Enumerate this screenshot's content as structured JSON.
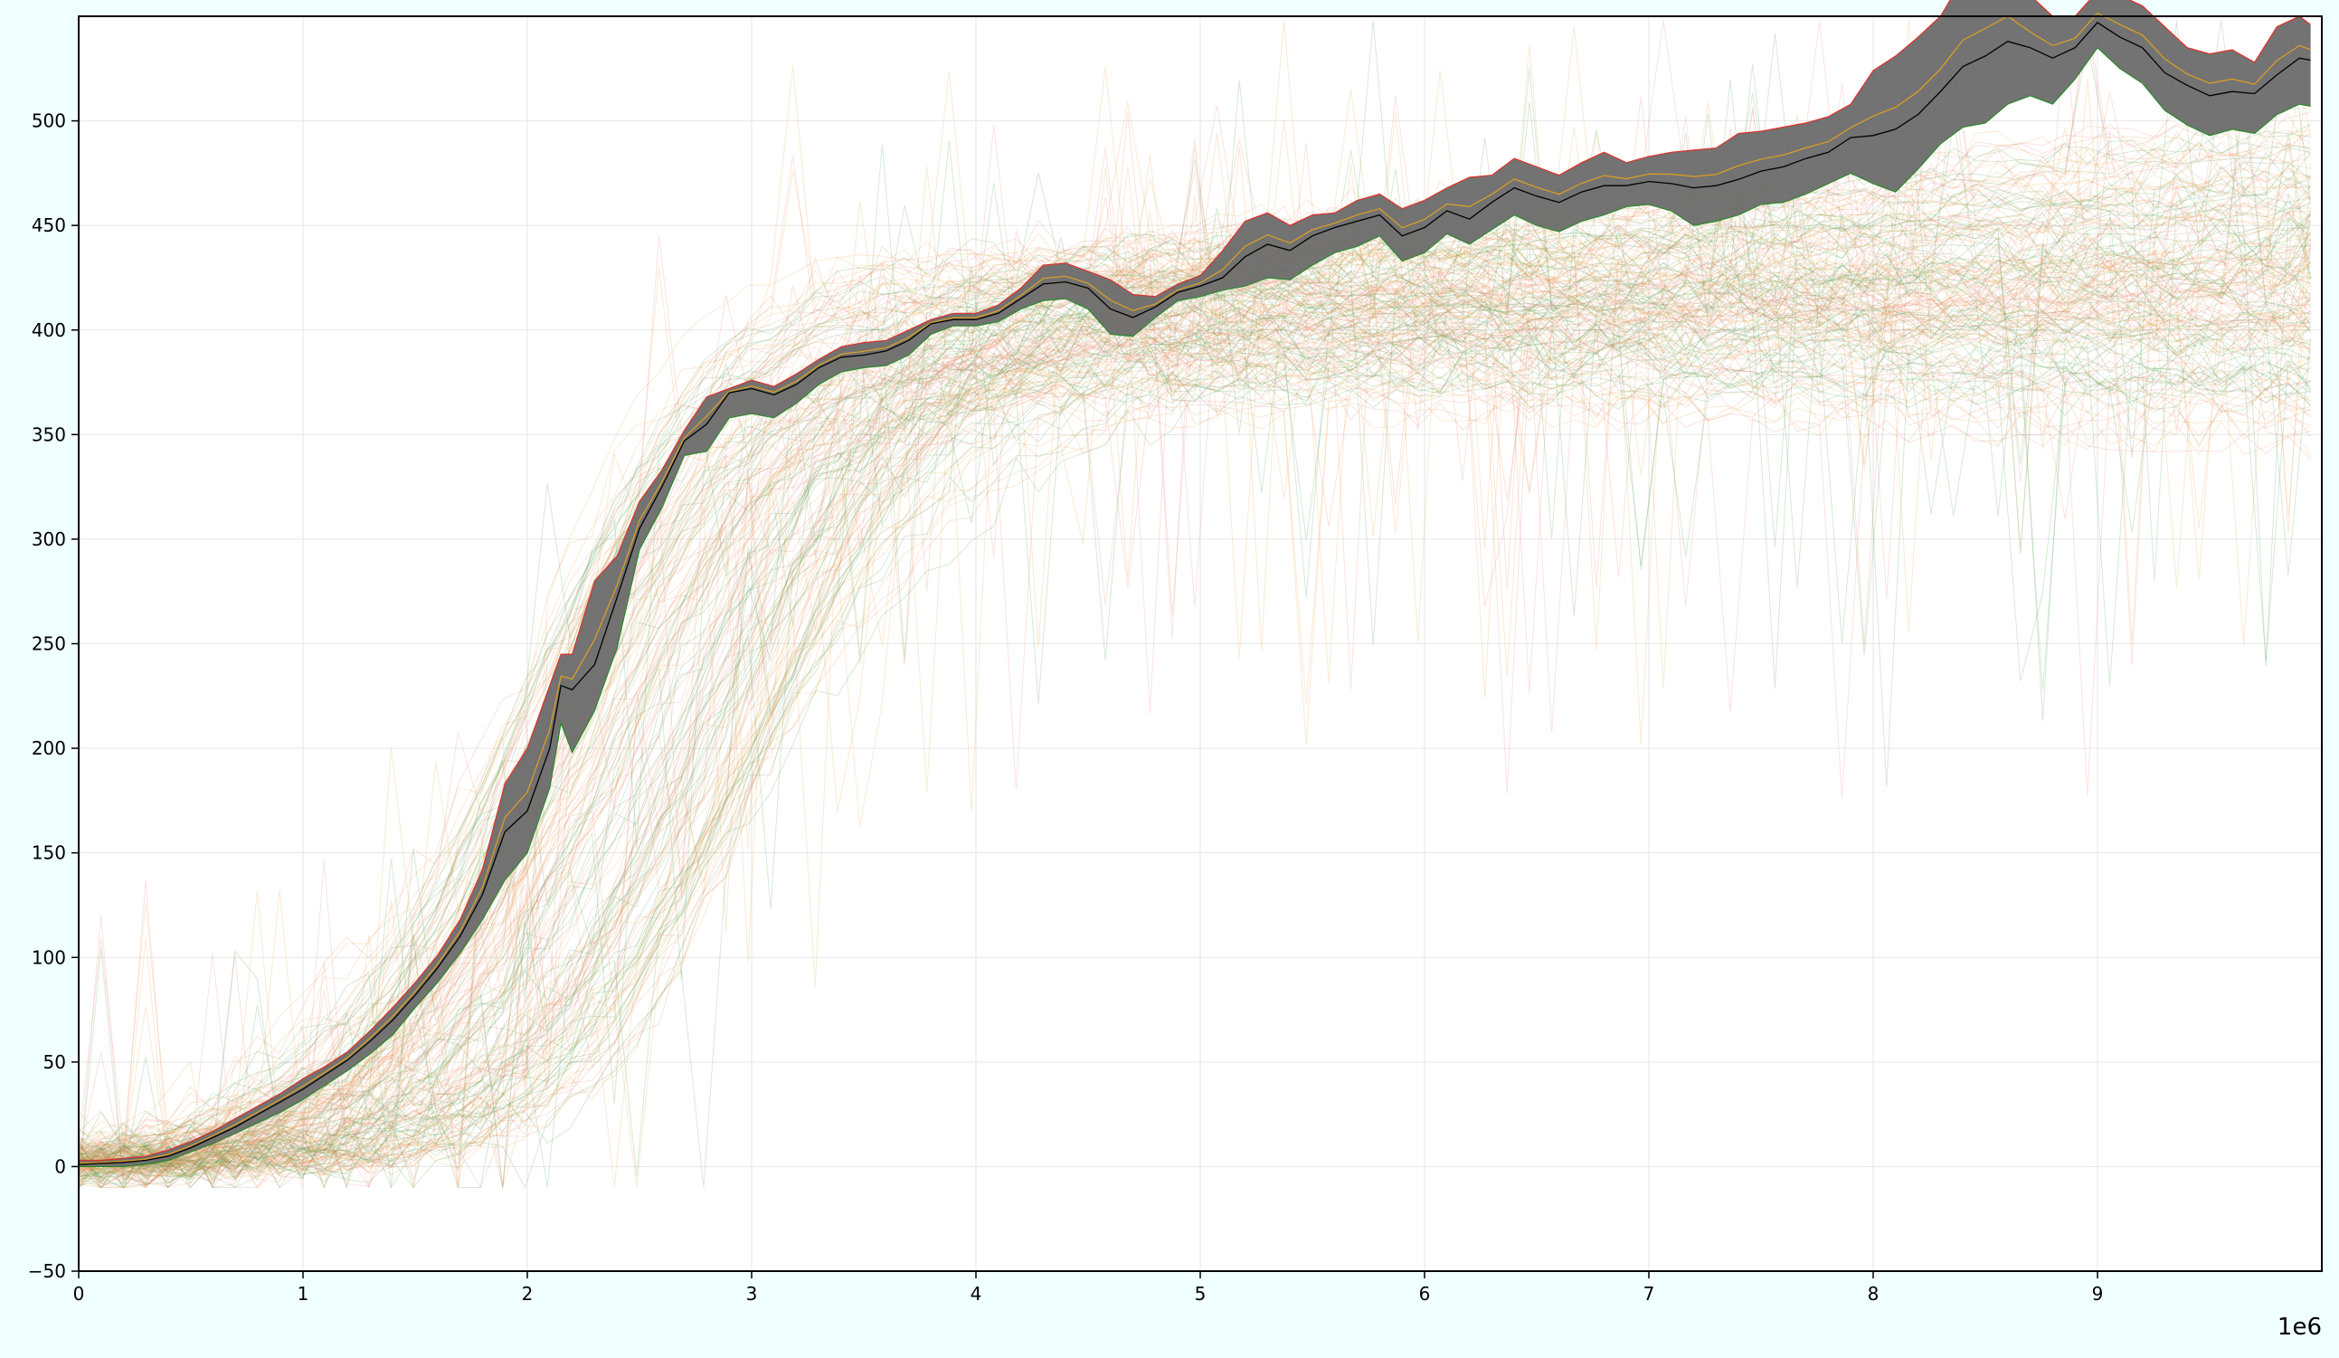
{
  "chart_data": {
    "type": "line",
    "title": "",
    "xlabel": "",
    "ylabel": "",
    "x_offset_label": "1e6",
    "xlim": [
      0,
      10
    ],
    "ylim": [
      -50,
      550
    ],
    "x_ticks": [
      0,
      1,
      2,
      3,
      4,
      5,
      6,
      7,
      8,
      9
    ],
    "x_tick_labels": [
      "0",
      "1",
      "2",
      "3",
      "4",
      "5",
      "6",
      "7",
      "8",
      "9"
    ],
    "y_ticks": [
      -50,
      0,
      50,
      100,
      150,
      200,
      250,
      300,
      350,
      400,
      450,
      500
    ],
    "y_tick_labels": [
      "−50",
      "0",
      "50",
      "100",
      "150",
      "200",
      "250",
      "300",
      "350",
      "400",
      "450",
      "500"
    ],
    "grid": true,
    "legend": "none",
    "colors": {
      "background": "#f0ffff",
      "plot_background": "#ffffff",
      "band_fill": "#6b6b6b",
      "mean_line": "#000000",
      "grid": "#e6e6e6",
      "faint_red": "#e8806c",
      "faint_orange": "#e8a040",
      "faint_green": "#4a9a44",
      "red": "#e0302a",
      "orange": "#e0a020",
      "green": "#2a8a2a"
    },
    "faint_series_count": 180,
    "highlight": {
      "x": [
        0,
        0.1,
        0.2,
        0.3,
        0.4,
        0.5,
        0.6,
        0.7,
        0.8,
        0.9,
        1.0,
        1.1,
        1.2,
        1.3,
        1.4,
        1.5,
        1.6,
        1.7,
        1.8,
        1.9,
        2.0,
        2.1,
        2.15,
        2.2,
        2.3,
        2.4,
        2.5,
        2.6,
        2.7,
        2.8,
        2.9,
        3.0,
        3.1,
        3.2,
        3.3,
        3.4,
        3.5,
        3.6,
        3.7,
        3.8,
        3.9,
        4.0,
        4.1,
        4.2,
        4.3,
        4.4,
        4.5,
        4.6,
        4.7,
        4.8,
        4.9,
        5.0,
        5.1,
        5.2,
        5.3,
        5.4,
        5.5,
        5.6,
        5.7,
        5.8,
        5.9,
        6.0,
        6.1,
        6.2,
        6.3,
        6.4,
        6.5,
        6.6,
        6.7,
        6.8,
        6.9,
        7.0,
        7.1,
        7.2,
        7.3,
        7.4,
        7.5,
        7.6,
        7.7,
        7.8,
        7.9,
        8.0,
        8.1,
        8.2,
        8.3,
        8.4,
        8.5,
        8.6,
        8.7,
        8.8,
        8.9,
        9.0,
        9.1,
        9.2,
        9.3,
        9.4,
        9.5,
        9.6,
        9.7,
        9.8,
        9.9,
        9.95
      ],
      "mean": [
        1,
        1.5,
        2,
        3,
        5,
        9,
        14,
        19,
        25,
        31,
        37,
        44,
        51,
        60,
        70,
        82,
        95,
        110,
        130,
        160,
        170,
        200,
        230,
        228,
        240,
        272,
        305,
        325,
        347,
        355,
        370,
        372,
        369,
        374,
        382,
        387,
        388,
        390,
        395,
        403,
        405,
        405,
        408,
        415,
        422,
        423,
        420,
        410,
        406,
        411,
        418,
        421,
        425,
        435,
        441,
        438,
        445,
        449,
        452,
        455,
        445,
        449,
        457,
        453,
        461,
        468,
        464,
        461,
        466,
        469,
        469,
        471,
        470,
        468,
        469,
        472,
        476,
        478,
        482,
        485,
        492,
        493,
        496,
        503,
        514,
        526,
        531,
        538,
        535,
        530,
        535,
        547,
        540,
        535,
        523,
        517,
        512,
        514,
        513,
        522,
        530,
        529
      ],
      "upper": [
        3,
        3,
        4,
        5,
        8,
        12,
        17,
        23,
        29,
        35,
        42,
        48,
        55,
        65,
        76,
        88,
        101,
        118,
        142,
        183,
        200,
        230,
        245,
        245,
        280,
        292,
        318,
        333,
        352,
        368,
        372,
        376,
        373,
        379,
        386,
        392,
        394,
        395,
        400,
        405,
        408,
        408,
        412,
        420,
        431,
        432,
        428,
        424,
        417,
        416,
        422,
        426,
        438,
        452,
        456,
        450,
        455,
        456,
        462,
        465,
        458,
        462,
        468,
        473,
        474,
        482,
        478,
        474,
        480,
        485,
        480,
        483,
        485,
        486,
        487,
        494,
        495,
        497,
        499,
        502,
        508,
        524,
        531,
        540,
        550,
        568,
        575,
        578,
        560,
        550,
        550,
        562,
        560,
        555,
        545,
        535,
        532,
        534,
        528,
        545,
        550,
        546
      ],
      "lower": [
        0,
        0,
        0,
        1,
        3,
        7,
        11,
        16,
        21,
        26,
        32,
        39,
        46,
        54,
        63,
        76,
        88,
        102,
        118,
        137,
        150,
        181,
        212,
        198,
        218,
        248,
        295,
        315,
        340,
        342,
        358,
        360,
        358,
        365,
        374,
        380,
        382,
        383,
        388,
        398,
        402,
        402,
        404,
        410,
        414,
        415,
        410,
        398,
        397,
        406,
        414,
        416,
        419,
        421,
        425,
        424,
        431,
        437,
        440,
        445,
        433,
        437,
        446,
        441,
        448,
        455,
        450,
        447,
        452,
        455,
        459,
        460,
        457,
        450,
        452,
        455,
        460,
        461,
        465,
        470,
        475,
        470,
        466,
        477,
        489,
        497,
        499,
        508,
        512,
        508,
        520,
        535,
        525,
        518,
        505,
        498,
        493,
        496,
        494,
        503,
        508,
        507
      ]
    }
  }
}
